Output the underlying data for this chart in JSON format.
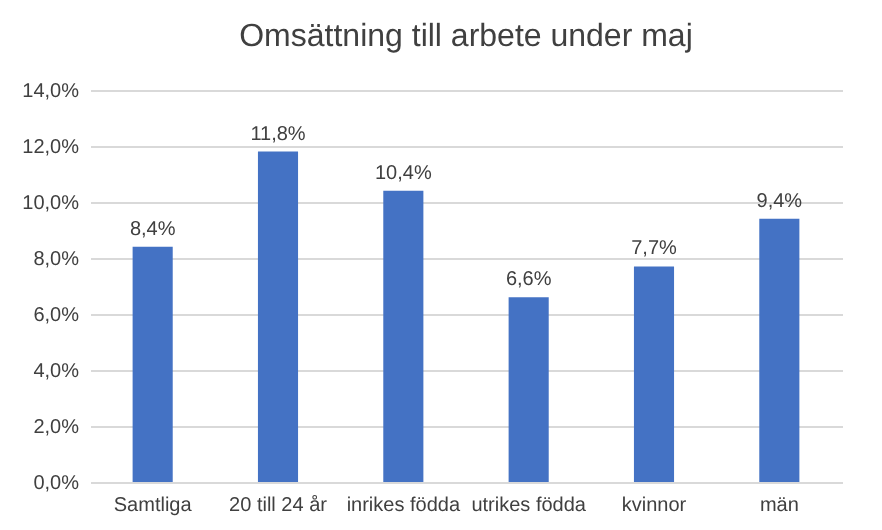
{
  "chart_data": {
    "type": "bar",
    "title": "Omsättning till arbete under maj",
    "categories": [
      "Samtliga",
      "20 till 24 år",
      "inrikes födda",
      "utrikes födda",
      "kvinnor",
      "män"
    ],
    "values": [
      8.4,
      11.8,
      10.4,
      6.6,
      7.7,
      9.4
    ],
    "value_labels": [
      "8,4%",
      "11,8%",
      "10,4%",
      "6,6%",
      "7,7%",
      "9,4%"
    ],
    "color": "#4472c4",
    "ylim": [
      0,
      14
    ],
    "yticks": [
      {
        "value": 0,
        "label": "0,0%"
      },
      {
        "value": 2,
        "label": "2,0%"
      },
      {
        "value": 4,
        "label": "4,0%"
      },
      {
        "value": 6,
        "label": "6,0%"
      },
      {
        "value": 8,
        "label": "8,0%"
      },
      {
        "value": 10,
        "label": "10,0%"
      },
      {
        "value": 12,
        "label": "12,0%"
      },
      {
        "value": 14,
        "label": "14,0%"
      }
    ],
    "grid": "y"
  }
}
